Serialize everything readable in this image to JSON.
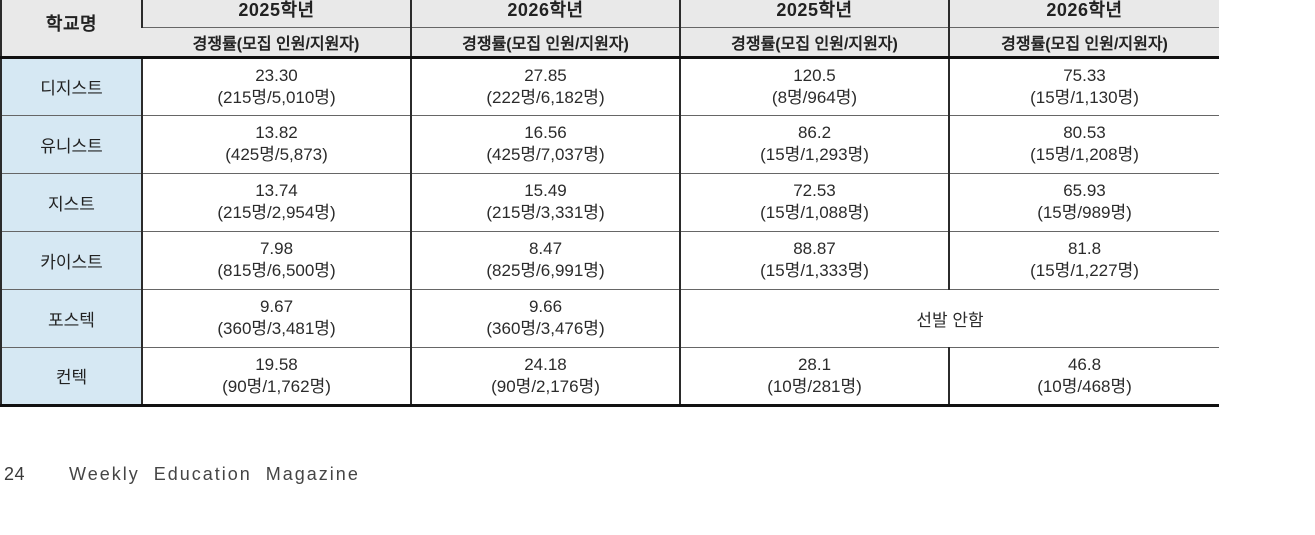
{
  "colors": {
    "header_bg": "#e9e9e9",
    "school_bg": "#d6e8f3",
    "border_dark": "#2b2b2b"
  },
  "footer": {
    "page_number": "24",
    "magazine_title": "Weekly Education Magazine"
  },
  "table": {
    "school_col_header": "학교명",
    "col_groups": [
      {
        "year": "2025학년",
        "sub": "경쟁률(모집 인원/지원자)"
      },
      {
        "year": "2026학년",
        "sub": "경쟁률(모집 인원/지원자)"
      },
      {
        "year": "2025학년",
        "sub": "경쟁률(모집 인원/지원자)"
      },
      {
        "year": "2026학년",
        "sub": "경쟁률(모집 인원/지원자)"
      }
    ],
    "rows": [
      {
        "school": "디지스트",
        "cells": [
          {
            "rate": "23.30",
            "detail": "(215명/5,010명)"
          },
          {
            "rate": "27.85",
            "detail": "(222명/6,182명)"
          },
          {
            "rate": "120.5",
            "detail": "(8명/964명)"
          },
          {
            "rate": "75.33",
            "detail": "(15명/1,130명)"
          }
        ]
      },
      {
        "school": "유니스트",
        "cells": [
          {
            "rate": "13.82",
            "detail": "(425명/5,873)"
          },
          {
            "rate": "16.56",
            "detail": "(425명/7,037명)"
          },
          {
            "rate": "86.2",
            "detail": "(15명/1,293명)"
          },
          {
            "rate": "80.53",
            "detail": "(15명/1,208명)"
          }
        ]
      },
      {
        "school": "지스트",
        "cells": [
          {
            "rate": "13.74",
            "detail": "(215명/2,954명)"
          },
          {
            "rate": "15.49",
            "detail": "(215명/3,331명)"
          },
          {
            "rate": "72.53",
            "detail": "(15명/1,088명)"
          },
          {
            "rate": "65.93",
            "detail": "(15명/989명)"
          }
        ]
      },
      {
        "school": "카이스트",
        "cells": [
          {
            "rate": "7.98",
            "detail": "(815명/6,500명)"
          },
          {
            "rate": "8.47",
            "detail": "(825명/6,991명)"
          },
          {
            "rate": "88.87",
            "detail": "(15명/1,333명)"
          },
          {
            "rate": "81.8",
            "detail": "(15명/1,227명)"
          }
        ]
      },
      {
        "school": "포스텍",
        "cells": [
          {
            "rate": "9.67",
            "detail": "(360명/3,481명)"
          },
          {
            "rate": "9.66",
            "detail": "(360명/3,476명)"
          }
        ],
        "merged": "선발 안함"
      },
      {
        "school": "컨텍",
        "cells": [
          {
            "rate": "19.58",
            "detail": "(90명/1,762명)"
          },
          {
            "rate": "24.18",
            "detail": "(90명/2,176명)"
          },
          {
            "rate": "28.1",
            "detail": "(10명/281명)"
          },
          {
            "rate": "46.8",
            "detail": "(10명/468명)"
          }
        ]
      }
    ]
  }
}
